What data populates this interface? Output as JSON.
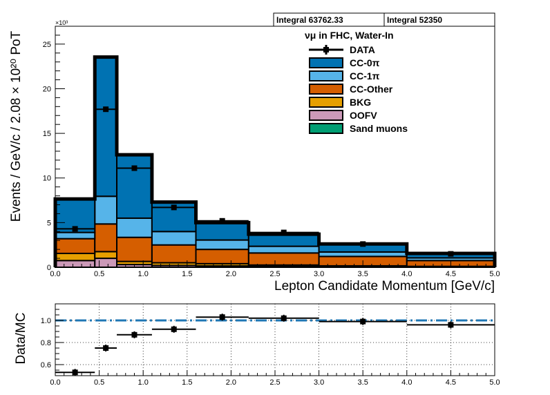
{
  "chart_data": [
    {
      "type": "bar",
      "stacked": true,
      "title": "",
      "header": "νμ in FHC, Water-In",
      "xlabel": "Lepton Candidate Momentum [GeV/c]",
      "ylabel": "Events / GeV/c / 2.08 × 10²⁰ PoT",
      "y_multiplier": "×10³",
      "bin_edges": [
        0.0,
        0.45,
        0.7,
        1.1,
        1.6,
        2.2,
        3.0,
        4.0,
        5.0
      ],
      "xlim": [
        0,
        5
      ],
      "ylim": [
        0,
        27
      ],
      "y_units": "thousands of events",
      "xticks": [
        "0.0",
        "0.5",
        "1.0",
        "1.5",
        "2.0",
        "2.5",
        "3.0",
        "3.5",
        "4.0",
        "4.5",
        "5.0"
      ],
      "yticks": [
        "0",
        "5",
        "10",
        "15",
        "20",
        "25"
      ],
      "integrals": [
        "Integral 63762.33",
        "Integral 52350"
      ],
      "legend_position": "top-right",
      "series": [
        {
          "name": "OOFV",
          "color": "#cc99b8",
          "values": [
            0.75,
            1.0,
            0.3,
            0.2,
            0.15,
            0.1,
            0.06,
            0.04
          ]
        },
        {
          "name": "BKG",
          "color": "#e69f00",
          "values": [
            0.8,
            0.75,
            0.35,
            0.3,
            0.25,
            0.15,
            0.1,
            0.06
          ]
        },
        {
          "name": "CC-Other",
          "color": "#d55e00",
          "values": [
            1.65,
            3.1,
            2.7,
            2.0,
            1.6,
            1.35,
            1.05,
            0.65
          ]
        },
        {
          "name": "CC-1π",
          "color": "#56b4e9",
          "values": [
            0.7,
            3.1,
            2.15,
            1.5,
            1.05,
            0.75,
            0.5,
            0.3
          ]
        },
        {
          "name": "CC-0π",
          "color": "#0072b2",
          "values": [
            3.75,
            15.6,
            7.1,
            3.3,
            1.95,
            1.35,
            0.9,
            0.5
          ]
        },
        {
          "name": "Sand muons",
          "color": "#009e73",
          "values": [
            0,
            0,
            0,
            0,
            0,
            0,
            0,
            0
          ]
        }
      ],
      "data": {
        "name": "DATA",
        "x": [
          0.225,
          0.575,
          0.9,
          1.35,
          1.9,
          2.6,
          3.5,
          4.5
        ],
        "values": [
          4.3,
          17.7,
          11.1,
          6.7,
          5.2,
          3.9,
          2.6,
          1.5
        ],
        "errors": [
          0.1,
          0.2,
          0.15,
          0.12,
          0.1,
          0.08,
          0.06,
          0.05
        ]
      }
    },
    {
      "type": "scatter",
      "title": "",
      "xlabel": "",
      "ylabel": "Data/MC",
      "xlim": [
        0,
        5
      ],
      "ylim": [
        0.5,
        1.15
      ],
      "xticks": [
        "0.0",
        "0.5",
        "1.0",
        "1.5",
        "2.0",
        "2.5",
        "3.0",
        "3.5",
        "4.0",
        "4.5",
        "5.0"
      ],
      "yticks": [
        "0.6",
        "0.8",
        "1.0"
      ],
      "reference_line": 1.0,
      "reference_color": "#1f77b4",
      "grid": true,
      "series": [
        {
          "name": "",
          "x": [
            0.225,
            0.575,
            0.9,
            1.35,
            1.9,
            2.6,
            3.5,
            4.5
          ],
          "xerr_low": [
            0.225,
            0.125,
            0.2,
            0.25,
            0.3,
            0.4,
            0.5,
            0.5
          ],
          "xerr_high": [
            0.225,
            0.125,
            0.2,
            0.25,
            0.3,
            0.4,
            0.5,
            0.5
          ],
          "values": [
            0.53,
            0.75,
            0.87,
            0.92,
            1.03,
            1.02,
            0.99,
            0.96
          ]
        }
      ]
    }
  ]
}
